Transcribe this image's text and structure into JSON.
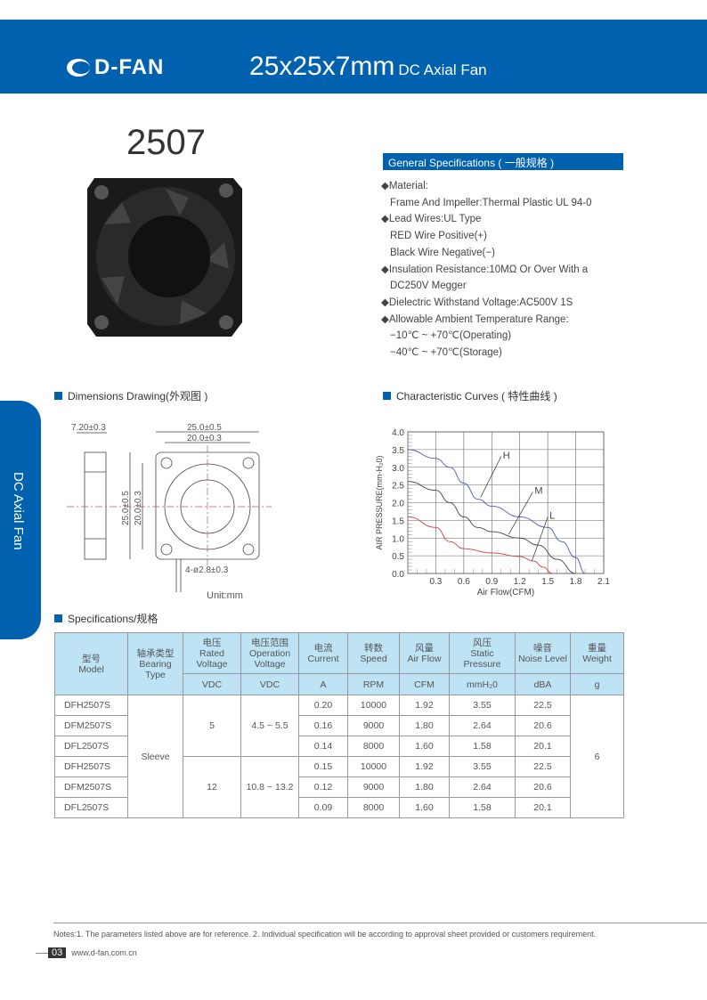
{
  "header": {
    "brand": "D-FAN",
    "title": "25x25x7mm",
    "subtitle": "DC Axial Fan"
  },
  "model": "2507",
  "side_tab": "DC Axial Fan",
  "general": {
    "heading": "General Specifications ( 一般规格 )",
    "lines": [
      {
        "text": "◆Material:",
        "indent": false
      },
      {
        "text": "Frame And Impeller:Thermal Plastic UL 94-0",
        "indent": true
      },
      {
        "text": "◆Lead Wires:UL Type",
        "indent": false
      },
      {
        "text": "RED Wire Positive(+)",
        "indent": true
      },
      {
        "text": "Black Wire Negative(−)",
        "indent": true
      },
      {
        "text": "◆Insulation Resistance:10MΩ  Or Over With a",
        "indent": false
      },
      {
        "text": "DC250V Megger",
        "indent": true
      },
      {
        "text": "◆Dielectric Withstand Voltage:AC500V 1S",
        "indent": false
      },
      {
        "text": "◆Allowable Ambient Temperature Range:",
        "indent": false
      },
      {
        "text": "−10℃ ~ +70℃(Operating)",
        "indent": true
      },
      {
        "text": "−40℃ ~ +70℃(Storage)",
        "indent": true
      }
    ]
  },
  "dimensions": {
    "heading": "Dimensions Drawing(外观图 )",
    "thickness": "7.20±0.3",
    "width_outer": "25.0±0.5",
    "width_hole": "20.0±0.3",
    "height_outer": "25.0±0.5",
    "height_hole": "20.0±0.3",
    "holes": "4-ø2.8±0.3",
    "unit": "Unit:mm"
  },
  "curves_heading": "Characteristic Curves ( 特性曲线 )",
  "chart_data": {
    "type": "line",
    "xlabel": "Air Flow(CFM)",
    "ylabel": "AIR PRESSURE(mm-H₂0)",
    "xlim": [
      0,
      2.1
    ],
    "ylim": [
      0,
      4.0
    ],
    "xticks": [
      "0.3",
      "0.6",
      "0.9",
      "1.2",
      "1.5",
      "1.8",
      "2.1"
    ],
    "yticks": [
      "0.0",
      "0.5",
      "1.0",
      "1.5",
      "2.0",
      "2.5",
      "3.0",
      "3.5",
      "4.0"
    ],
    "grid": true,
    "series": [
      {
        "name": "H",
        "color": "#4a58b8",
        "points": [
          [
            0,
            3.5
          ],
          [
            0.3,
            3.25
          ],
          [
            0.45,
            3.0
          ],
          [
            0.6,
            2.55
          ],
          [
            0.75,
            2.1
          ],
          [
            0.9,
            1.9
          ],
          [
            1.2,
            1.6
          ],
          [
            1.5,
            1.3
          ],
          [
            1.65,
            0.9
          ],
          [
            1.8,
            0.45
          ],
          [
            1.9,
            0
          ]
        ]
      },
      {
        "name": "M",
        "color": "#444444",
        "points": [
          [
            0,
            2.6
          ],
          [
            0.3,
            2.35
          ],
          [
            0.45,
            2.0
          ],
          [
            0.6,
            1.6
          ],
          [
            0.75,
            1.3
          ],
          [
            0.9,
            1.18
          ],
          [
            1.2,
            1.0
          ],
          [
            1.4,
            0.8
          ],
          [
            1.6,
            0.4
          ],
          [
            1.8,
            0
          ]
        ]
      },
      {
        "name": "L",
        "color": "#d04040",
        "points": [
          [
            0,
            1.6
          ],
          [
            0.3,
            1.3
          ],
          [
            0.45,
            0.9
          ],
          [
            0.6,
            0.7
          ],
          [
            0.9,
            0.58
          ],
          [
            1.2,
            0.48
          ],
          [
            1.35,
            0.35
          ],
          [
            1.45,
            0.18
          ],
          [
            1.55,
            0
          ]
        ]
      }
    ]
  },
  "specs": {
    "heading": "Specifications/规格",
    "headers": [
      [
        "型号",
        "Model"
      ],
      [
        "轴承类型",
        "Bearing",
        "Type"
      ],
      [
        "电压",
        "Rated",
        "Voltage"
      ],
      [
        "电压范围",
        "Operation",
        "Voltage"
      ],
      [
        "电流",
        "Current"
      ],
      [
        "转数",
        "Speed"
      ],
      [
        "风量",
        "Air Flow"
      ],
      [
        "风压",
        "Static",
        "Pressure"
      ],
      [
        "噪音",
        "Noise Level"
      ],
      [
        "重量",
        "Weight"
      ]
    ],
    "units": [
      "VDC",
      "VDC",
      "A",
      "RPM",
      "CFM",
      "mmH₂0",
      "dBA",
      "g"
    ],
    "bearing": "Sleeve",
    "weight": "6",
    "groups": [
      {
        "rated": "5",
        "range": "4.5 ~ 5.5"
      },
      {
        "rated": "12",
        "range": "10.8 ~ 13.2"
      }
    ],
    "rows": [
      [
        "DFH2507S",
        "0.20",
        "10000",
        "1.92",
        "3.55",
        "22.5"
      ],
      [
        "DFM2507S",
        "0.16",
        "9000",
        "1.80",
        "2.64",
        "20.6"
      ],
      [
        "DFL2507S",
        "0.14",
        "8000",
        "1.60",
        "1.58",
        "20.1"
      ],
      [
        "DFH2507S",
        "0.15",
        "10000",
        "1.92",
        "3.55",
        "22.5"
      ],
      [
        "DFM2507S",
        "0.12",
        "9000",
        "1.80",
        "2.64",
        "20.6"
      ],
      [
        "DFL2507S",
        "0.09",
        "8000",
        "1.60",
        "1.58",
        "20.1"
      ]
    ]
  },
  "footer": {
    "notes": "Notes:1. The parameters listed above are for reference.   2. Individual specification will be according to approval sheet provided or customers requirement.",
    "page": "03",
    "website": "www.d-fan.com.cn"
  }
}
